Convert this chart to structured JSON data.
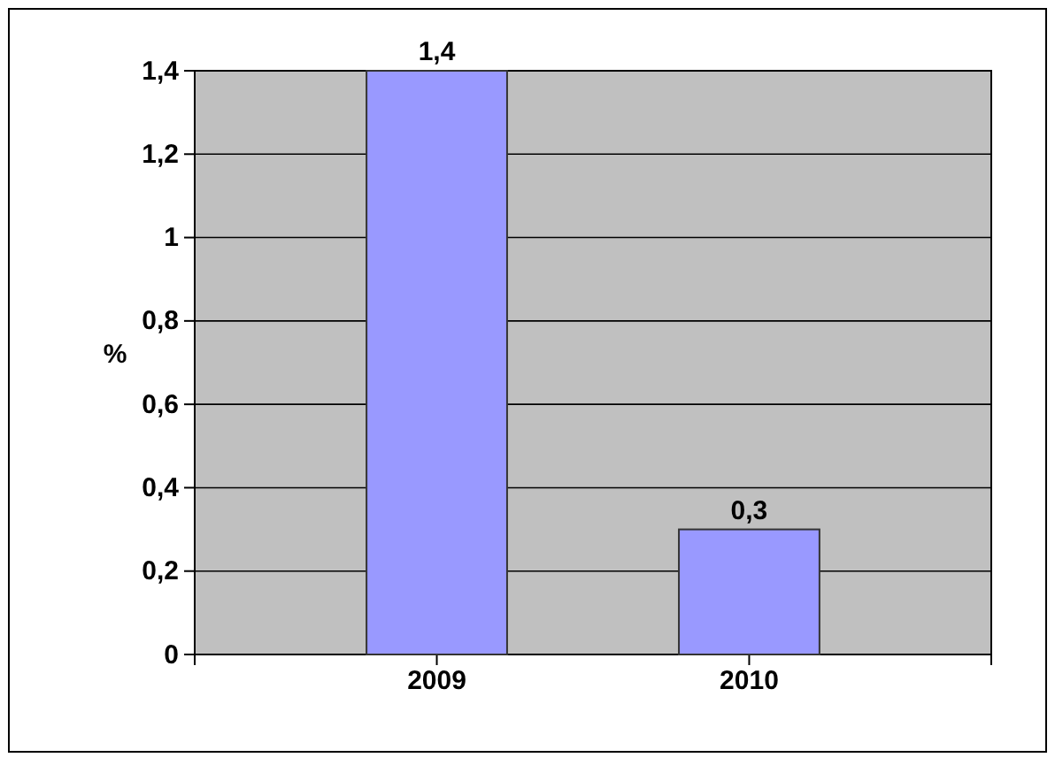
{
  "chart_data": {
    "type": "bar",
    "ylabel": "%",
    "categories": [
      "2009",
      "2010"
    ],
    "values": [
      1.4,
      0.3
    ],
    "color": "#9999ff",
    "value_labels": [
      "1,4",
      "0,3"
    ],
    "ylim": [
      0,
      1.4
    ],
    "yticks": [
      {
        "value": 0,
        "label": "0"
      },
      {
        "value": 0.2,
        "label": "0,2"
      },
      {
        "value": 0.4,
        "label": "0,4"
      },
      {
        "value": 0.6,
        "label": "0,6"
      },
      {
        "value": 0.8,
        "label": "0,8"
      },
      {
        "value": 1,
        "label": "1"
      },
      {
        "value": 1.2,
        "label": "1,2"
      },
      {
        "value": 1.4,
        "label": "1,4"
      }
    ],
    "grid": true
  }
}
